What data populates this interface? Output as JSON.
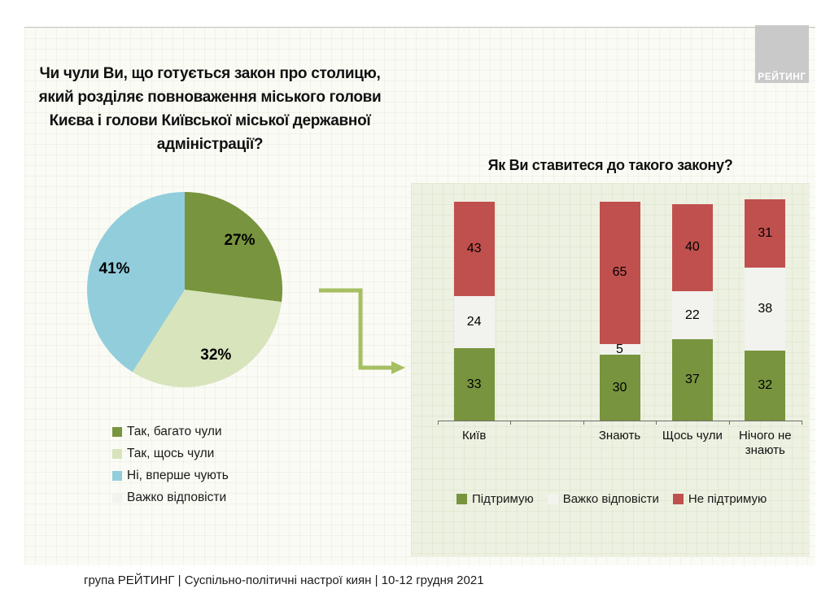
{
  "logo": "РЕЙТИНГ",
  "footer": "група РЕЙТИНГ | Суспільно-політичні настрої киян | 10-12 грудня 2021",
  "colors": {
    "support_green": "#78943e",
    "light_green": "#d7e4bc",
    "blue": "#92cddc",
    "neutral_white": "#f2f2ef",
    "oppose_red": "#c0504d",
    "arrow": "#a6bf63",
    "panel_bg": "#edf1e1",
    "logo_bg": "#c9c9c9"
  },
  "chart_data": [
    {
      "type": "pie",
      "title": "Чи чули Ви, що готується закон про столицю, який розділяє повноваження міського голови Києва і голови Київської міської державної адміністрації?",
      "title_lines": [
        "Чи чули Ви, що готується закон про столицю,",
        "який розділяє повноваження міського голови",
        "Києва і голови Київської міської державної",
        "адміністрації?"
      ],
      "value_suffix": "%",
      "slices": [
        {
          "label": "Так, багато чули",
          "value": 27,
          "color": "#78943e"
        },
        {
          "label": "Так, щось чули",
          "value": 32,
          "color": "#d7e4bc"
        },
        {
          "label": "Ні, вперше чують",
          "value": 41,
          "color": "#92cddc"
        },
        {
          "label": "Важко відповісти",
          "value": 0,
          "color": "#f2f2ef"
        }
      ]
    },
    {
      "type": "bar",
      "stacked": true,
      "title": "Як Ви ставитеся до такого закону?",
      "categories": [
        "Київ",
        "Знають",
        "Щось чули",
        "Нічого не знають"
      ],
      "series": [
        {
          "name": "Підтримую",
          "color": "#78943e",
          "values": [
            33,
            30,
            37,
            32
          ]
        },
        {
          "name": "Важко відповісти",
          "color": "#f2f2ef",
          "values": [
            24,
            5,
            22,
            38
          ]
        },
        {
          "name": "Не підтримую",
          "color": "#c0504d",
          "values": [
            43,
            65,
            40,
            31
          ]
        }
      ],
      "ylim": [
        0,
        100
      ],
      "grid": false,
      "legend_position": "bottom"
    }
  ]
}
